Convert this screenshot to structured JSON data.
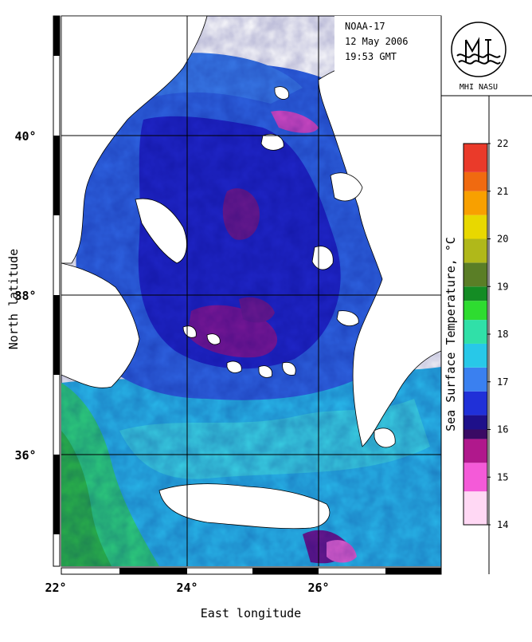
{
  "satellite": "NOAA-17",
  "date": "12 May 2006",
  "time": "19:53 GMT",
  "logo": {
    "label": "MHI NASU",
    "monogram": "МГІ"
  },
  "axes": {
    "x": {
      "label": "East longitude",
      "ticks": [
        "22°",
        "24°",
        "26°"
      ]
    },
    "y": {
      "label": "North latitude",
      "ticks": [
        "40°",
        "38°",
        "36°"
      ]
    }
  },
  "colorbar": {
    "title": "Sea Surface Temperature, °C",
    "min": 14,
    "max": 22,
    "tick_labels": [
      "22",
      "21",
      "20",
      "19",
      "18",
      "17",
      "16",
      "15",
      "14"
    ],
    "colors": {
      "14": "#ffd8f4",
      "14.7": "#f45ad8",
      "15.3": "#b0188c",
      "15.8": "#3a0a64",
      "16": "#1e108a",
      "16.3": "#2030d8",
      "16.8": "#3a80f0",
      "17.3": "#28c8e8",
      "17.8": "#30e0a8",
      "18.3": "#2edc30",
      "18.7": "#148c24",
      "19": "#5a7e26",
      "19.5": "#b0b81a",
      "20": "#e8d800",
      "20.5": "#f8a000",
      "21": "#f06a10",
      "21.4": "#ea3a2a",
      "22": "#fde8ea"
    }
  }
}
